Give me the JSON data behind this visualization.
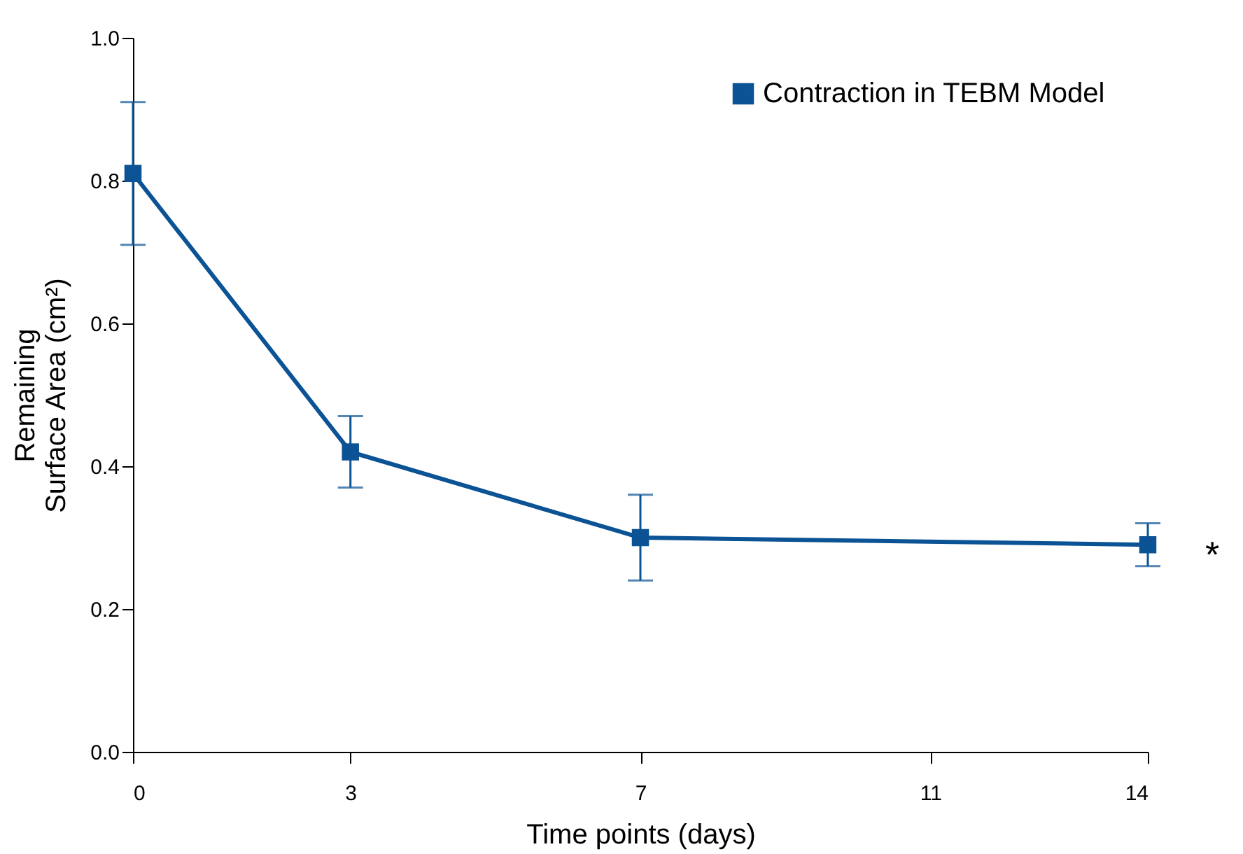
{
  "chart_data": {
    "type": "line",
    "xlabel": "Time points (days)",
    "ylabel": "Remaining\nSurface Area (cm²)",
    "x": [
      0,
      3,
      7,
      14
    ],
    "series": [
      {
        "name": "Contraction in TEBM Model",
        "color": "#0b5394",
        "values": [
          0.81,
          0.42,
          0.3,
          0.29
        ],
        "errors": [
          0.1,
          0.05,
          0.06,
          0.03
        ]
      }
    ],
    "xlim": [
      0,
      14
    ],
    "xticks": [
      0,
      3,
      7,
      11,
      14
    ],
    "ylim": [
      0,
      1
    ],
    "yticks": [
      {
        "value": 0,
        "label": "0.0"
      },
      {
        "value": 0.2,
        "label": "0.2"
      },
      {
        "value": 0.4,
        "label": "0.4"
      },
      {
        "value": 0.6,
        "label": "0.6"
      },
      {
        "value": 0.8,
        "label": "0.8"
      },
      {
        "value": 1,
        "label": "1.0"
      }
    ],
    "annotations": [
      {
        "text": "*",
        "x": 14,
        "y": 0.29
      }
    ],
    "grid": false,
    "legend": "top right",
    "marker": "square",
    "line_style": "solid"
  }
}
